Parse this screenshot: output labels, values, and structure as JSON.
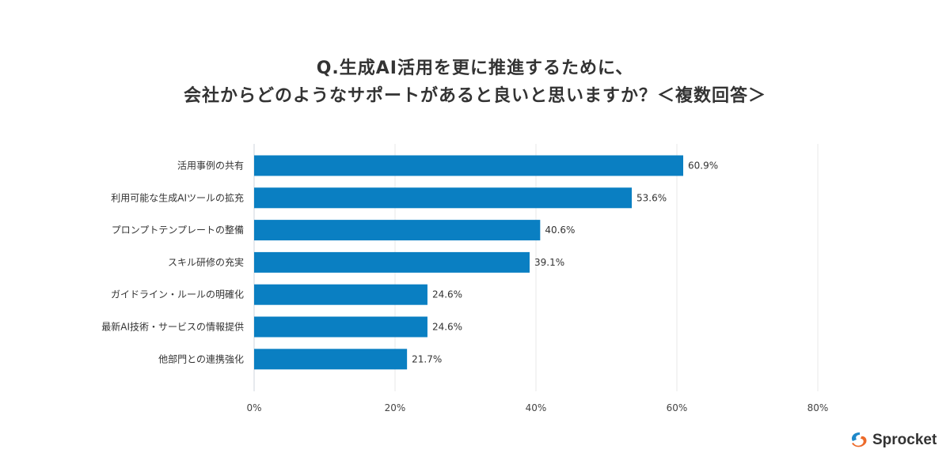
{
  "chart_data": {
    "type": "bar",
    "orientation": "horizontal",
    "title_lines": [
      "Q.生成AI活用を更に推進するために、",
      "会社からどのようなサポートがあると良いと思いますか？＜複数回答＞"
    ],
    "categories": [
      "活用事例の共有",
      "利用可能な生成AIツールの拡充",
      "プロンプトテンプレートの整備",
      "スキル研修の充実",
      "ガイドライン・ルールの明確化",
      "最新AI技術・サービスの情報提供",
      "他部門との連携強化"
    ],
    "values": [
      60.9,
      53.6,
      40.6,
      39.1,
      24.6,
      24.6,
      21.7
    ],
    "data_labels": [
      "60.9%",
      "53.6%",
      "40.6%",
      "39.1%",
      "24.6%",
      "24.6%",
      "21.7%"
    ],
    "xlim": [
      0,
      80
    ],
    "xticks": [
      0,
      20,
      40,
      60,
      80
    ],
    "xtick_labels": [
      "0%",
      "20%",
      "40%",
      "60%",
      "80%"
    ],
    "grid": true,
    "bar_color": "#0a7fc2",
    "xlabel": "",
    "ylabel": ""
  },
  "brand": {
    "name": "Sprocket",
    "colors": [
      "#1e88c9",
      "#ec6a2a"
    ]
  }
}
